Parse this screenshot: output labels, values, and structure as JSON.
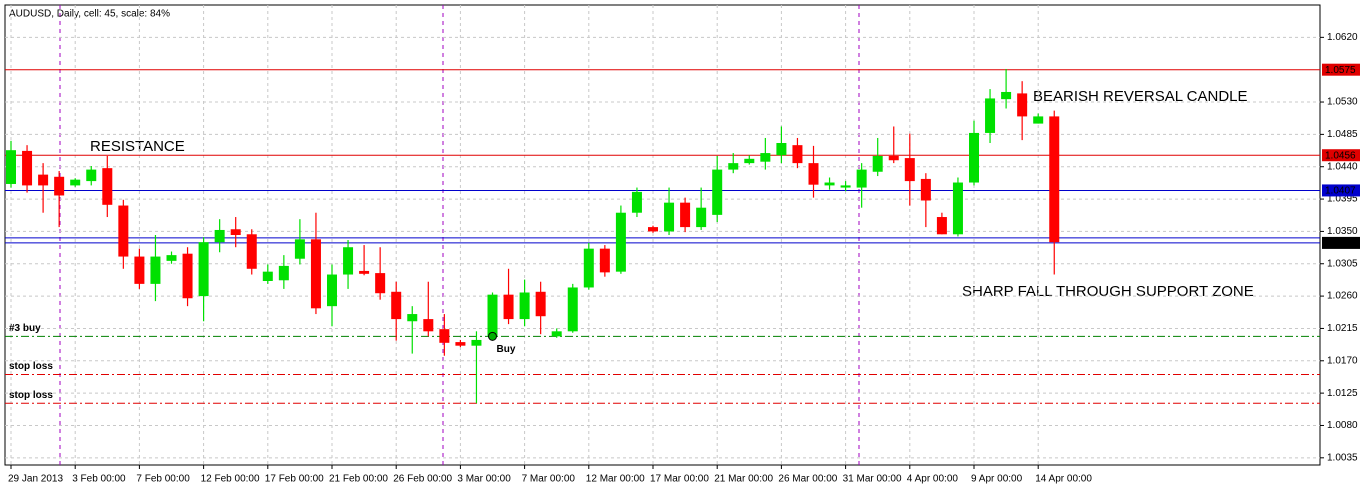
{
  "chart_data": {
    "type": "candlestick",
    "title": "AUDUSD, Daily, cell: 45, scale: 84%",
    "categories": [
      "29 Jan 2013",
      null,
      null,
      null,
      "3 Feb 00:00",
      null,
      null,
      null,
      "7 Feb 00:00",
      null,
      null,
      null,
      "12 Feb 00:00",
      null,
      null,
      null,
      "17 Feb 00:00",
      null,
      null,
      null,
      "21 Feb 00:00",
      null,
      null,
      null,
      "26 Feb 00:00",
      null,
      null,
      null,
      "3 Mar 00:00",
      null,
      null,
      null,
      "7 Mar 00:00",
      null,
      null,
      null,
      "12 Mar 00:00",
      null,
      null,
      null,
      "17 Mar 00:00",
      null,
      null,
      null,
      "21 Mar 00:00",
      null,
      null,
      null,
      "26 Mar 00:00",
      null,
      null,
      null,
      "31 Mar 00:00",
      null,
      null,
      null,
      "4 Apr 00:00",
      null,
      null,
      null,
      "9 Apr 00:00",
      null,
      null,
      null,
      "14 Apr 00:00",
      null
    ],
    "open": [
      1.0416,
      1.0462,
      1.0429,
      1.0426,
      1.0414,
      1.042,
      1.0438,
      1.0386,
      1.0315,
      1.0277,
      1.0309,
      1.0319,
      1.026,
      1.0335,
      1.0353,
      1.0346,
      1.0281,
      1.0282,
      1.0312,
      1.0339,
      1.0246,
      1.029,
      1.0295,
      1.0292,
      1.0266,
      1.0225,
      1.0228,
      1.0214,
      1.0196,
      1.0191,
      1.0204,
      1.0262,
      1.0228,
      1.0266,
      1.0204,
      1.0211,
      1.0272,
      1.0326,
      1.0294,
      1.0376,
      1.0356,
      1.035,
      1.039,
      1.0356,
      1.0373,
      1.0436,
      1.0445,
      1.0447,
      1.0456,
      1.047,
      1.0445,
      1.0414,
      1.0411,
      1.0411,
      1.0433,
      1.0455,
      1.0452,
      1.0423,
      1.037,
      1.0346,
      1.0418,
      1.0487,
      1.0534,
      1.0542,
      1.05,
      1.051
    ],
    "high": [
      1.0476,
      1.047,
      1.0445,
      1.0434,
      1.0424,
      1.0441,
      1.0455,
      1.0394,
      1.0326,
      1.0345,
      1.0322,
      1.0328,
      1.0342,
      1.0367,
      1.037,
      1.0353,
      1.0304,
      1.0317,
      1.0367,
      1.0376,
      1.0304,
      1.0338,
      1.0331,
      1.0328,
      1.028,
      1.0246,
      1.028,
      1.0235,
      1.0199,
      1.0211,
      1.0265,
      1.0298,
      1.0283,
      1.028,
      1.0215,
      1.0277,
      1.0334,
      1.0331,
      1.0386,
      1.0411,
      1.0358,
      1.0411,
      1.0397,
      1.0411,
      1.0455,
      1.0459,
      1.0456,
      1.048,
      1.0496,
      1.048,
      1.0469,
      1.0425,
      1.042,
      1.0445,
      1.048,
      1.0496,
      1.0486,
      1.0431,
      1.0376,
      1.0425,
      1.0504,
      1.0548,
      1.0576,
      1.0559,
      1.0514,
      1.0518
    ],
    "low": [
      1.0411,
      1.0404,
      1.0376,
      1.0356,
      1.0412,
      1.0414,
      1.037,
      1.0298,
      1.027,
      1.0253,
      1.0305,
      1.0246,
      1.0225,
      1.0321,
      1.0328,
      1.029,
      1.0277,
      1.027,
      1.0304,
      1.0235,
      1.0218,
      1.027,
      1.0289,
      1.0255,
      1.0198,
      1.018,
      1.0204,
      1.0177,
      1.0189,
      1.0111,
      1.0198,
      1.0221,
      1.0218,
      1.0207,
      1.0202,
      1.0209,
      1.0269,
      1.0287,
      1.0291,
      1.037,
      1.0348,
      1.0345,
      1.0349,
      1.0352,
      1.0363,
      1.0431,
      1.0443,
      1.0436,
      1.0445,
      1.0438,
      1.0397,
      1.0408,
      1.0406,
      1.0383,
      1.0427,
      1.0445,
      1.0386,
      1.0356,
      1.0346,
      1.0343,
      1.0414,
      1.0473,
      1.0521,
      1.0477,
      1.05,
      1.029
    ],
    "close": [
      1.0463,
      1.0414,
      1.0414,
      1.04,
      1.0422,
      1.0436,
      1.0387,
      1.0315,
      1.0277,
      1.0315,
      1.0317,
      1.0257,
      1.0335,
      1.0352,
      1.0345,
      1.0298,
      1.0294,
      1.0302,
      1.0339,
      1.0243,
      1.029,
      1.0328,
      1.0291,
      1.0264,
      1.0228,
      1.0235,
      1.0211,
      1.0195,
      1.0191,
      1.0199,
      1.0262,
      1.0228,
      1.0265,
      1.0232,
      1.0211,
      1.0272,
      1.0326,
      1.0293,
      1.0376,
      1.0405,
      1.035,
      1.039,
      1.0356,
      1.0383,
      1.0436,
      1.0445,
      1.0451,
      1.0459,
      1.0473,
      1.0445,
      1.0415,
      1.0418,
      1.0414,
      1.0436,
      1.0455,
      1.0449,
      1.042,
      1.0393,
      1.0346,
      1.0418,
      1.0487,
      1.0535,
      1.0544,
      1.051,
      1.051,
      1.0335
    ],
    "up_color": "#00e000",
    "down_color": "#ff0000",
    "ylim": [
      1.0025,
      1.0665
    ],
    "yticks": [
      {
        "value": 1.062,
        "label": "1.0620"
      },
      {
        "value": 1.053,
        "label": "1.0530"
      },
      1.0485,
      {
        "value": 1.044,
        "label": "1.0440"
      },
      1.0395,
      {
        "value": 1.035,
        "label": "1.0350"
      },
      1.0305,
      {
        "value": 1.026,
        "label": "1.0260"
      },
      1.0215,
      {
        "value": 1.017,
        "label": "1.0170"
      },
      1.0125,
      {
        "value": 1.008,
        "label": "1.0080"
      },
      1.0035
    ],
    "grid": true,
    "price_levels": [
      {
        "value": 1.0575,
        "color": "#e00000",
        "label_color": "#e00000"
      },
      {
        "value": 1.0456,
        "color": "#e00000",
        "label_color": "#e00000"
      },
      {
        "value": 1.0407,
        "color": "#0000cc",
        "label_color": "#0000cc"
      },
      {
        "value": 1.0334,
        "color": "#0000cc",
        "label_color": "#000000"
      }
    ],
    "lines": [
      {
        "value": 1.0341,
        "color": "#0000cc"
      }
    ],
    "order_lines": [
      {
        "label": "#3 buy",
        "value": 1.0204,
        "color": "#008000"
      },
      {
        "label": "stop loss",
        "value": 1.0151,
        "color": "#e00000"
      },
      {
        "label": "stop loss",
        "value": 1.0111,
        "color": "#e00000"
      }
    ],
    "signal": {
      "label": "Buy",
      "candle": 30,
      "value": 1.0204,
      "color": "#000080"
    },
    "annotations": [
      "RESISTANCE",
      "BEARISH REVERSAL CANDLE",
      "SHARP FALL THROUGH SUPPORT ZONE"
    ]
  }
}
